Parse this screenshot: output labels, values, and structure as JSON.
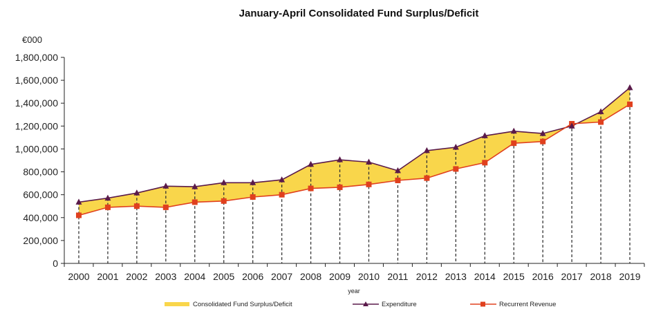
{
  "chart_data": {
    "type": "line",
    "title": "January-April Consolidated Fund Surplus/Deficit",
    "unit_label": "€000",
    "xlabel": "year",
    "ylabel": "",
    "ylim": [
      0,
      1800000
    ],
    "yticks": [
      {
        "value": 0,
        "label": "0"
      },
      {
        "value": 200000,
        "label": "200,000"
      },
      {
        "value": 400000,
        "label": "400,000"
      },
      {
        "value": 600000,
        "label": "600,000"
      },
      {
        "value": 800000,
        "label": "800,000"
      },
      {
        "value": 1000000,
        "label": "1,000,000"
      },
      {
        "value": 1200000,
        "label": "1,200,000"
      },
      {
        "value": 1400000,
        "label": "1,400,000"
      },
      {
        "value": 1600000,
        "label": "1,600,000"
      },
      {
        "value": 1800000,
        "label": "1,800,000"
      }
    ],
    "categories": [
      "2000",
      "2001",
      "2002",
      "2003",
      "2004",
      "2005",
      "2006",
      "2007",
      "2008",
      "2009",
      "2010",
      "2011",
      "2012",
      "2013",
      "2014",
      "2015",
      "2016",
      "2017",
      "2018",
      "2019"
    ],
    "series": [
      {
        "name": "Expenditure",
        "color": "#5a1a4a",
        "marker": "triangle",
        "values": [
          535000,
          570000,
          615000,
          675000,
          670000,
          705000,
          705000,
          730000,
          865000,
          905000,
          885000,
          810000,
          985000,
          1015000,
          1115000,
          1155000,
          1135000,
          1200000,
          1325000,
          1535000
        ]
      },
      {
        "name": "Recurrent Revenue",
        "color": "#e0401e",
        "marker": "square",
        "values": [
          420000,
          490000,
          500000,
          490000,
          535000,
          545000,
          580000,
          600000,
          655000,
          665000,
          690000,
          725000,
          745000,
          825000,
          880000,
          1050000,
          1065000,
          1220000,
          1235000,
          1390000
        ]
      }
    ],
    "fill": {
      "name": "Consolidated Fund Surplus/Deficit",
      "color": "#f9d64b"
    },
    "grid": false,
    "legend_position": "bottom"
  }
}
